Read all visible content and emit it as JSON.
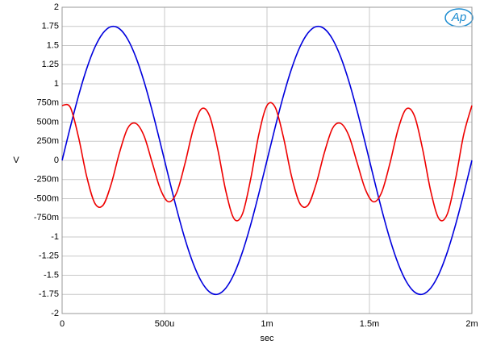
{
  "chart_data": {
    "type": "line",
    "x_label": "sec",
    "y_label": "V",
    "watermark": "Ap",
    "x": [
      0,
      4e-05,
      8e-05,
      0.00012,
      0.00016,
      0.0002,
      0.00024,
      0.00028,
      0.00032,
      0.00036,
      0.0004,
      0.00044,
      0.00048,
      0.00052,
      0.00056,
      0.0006,
      0.00064,
      0.00068,
      0.00072,
      0.00076,
      0.0008,
      0.00084,
      0.00088,
      0.00092,
      0.00096,
      0.001,
      0.00104,
      0.00108,
      0.00112,
      0.00116,
      0.0012,
      0.00124,
      0.00128,
      0.00132,
      0.00136,
      0.0014,
      0.00144,
      0.00148,
      0.00152,
      0.00156,
      0.0016,
      0.00164,
      0.00168,
      0.00172,
      0.00176,
      0.0018,
      0.00184,
      0.00188,
      0.00192,
      0.00196,
      0.002
    ],
    "series": [
      {
        "color": "#0000dd",
        "values": [
          0,
          0.435,
          0.843,
          1.198,
          1.478,
          1.664,
          1.747,
          1.719,
          1.583,
          1.348,
          1.029,
          0.644,
          0.219,
          -0.219,
          -0.644,
          -1.029,
          -1.348,
          -1.583,
          -1.719,
          -1.747,
          -1.664,
          -1.478,
          -1.198,
          -0.843,
          -0.435,
          0,
          0.435,
          0.843,
          1.198,
          1.478,
          1.664,
          1.747,
          1.719,
          1.583,
          1.348,
          1.029,
          0.644,
          0.219,
          -0.219,
          -0.644,
          -1.029,
          -1.348,
          -1.583,
          -1.719,
          -1.747,
          -1.664,
          -1.478,
          -1.198,
          -0.843,
          -0.435,
          0
        ]
      },
      {
        "color": "#ee0000",
        "values": [
          0.717,
          0.693,
          0.304,
          -0.21,
          -0.561,
          -0.585,
          -0.305,
          0.101,
          0.42,
          0.482,
          0.319,
          -0.032,
          -0.378,
          -0.541,
          -0.415,
          -0.038,
          0.408,
          0.673,
          0.578,
          0.14,
          -0.413,
          -0.765,
          -0.7,
          -0.247,
          0.337,
          0.717,
          0.693,
          0.304,
          -0.21,
          -0.561,
          -0.585,
          -0.305,
          0.101,
          0.42,
          0.482,
          0.319,
          -0.032,
          -0.378,
          -0.541,
          -0.415,
          -0.038,
          0.408,
          0.673,
          0.578,
          0.14,
          -0.413,
          -0.765,
          -0.7,
          -0.247,
          0.337,
          0.717
        ]
      }
    ],
    "xlim": [
      0,
      0.002
    ],
    "xticks": [
      0,
      {
        "value": 0.0005,
        "label": "500u"
      },
      {
        "value": 0.001,
        "label": "1m"
      },
      {
        "value": 0.0015,
        "label": "1.5m"
      },
      {
        "value": 0.002,
        "label": "2m"
      }
    ],
    "ylim": [
      -2,
      2
    ],
    "yticks": [
      2,
      1.75,
      1.5,
      1.25,
      1,
      {
        "value": 0.75,
        "label": "750m"
      },
      {
        "value": 0.5,
        "label": "500m"
      },
      {
        "value": 0.25,
        "label": "250m"
      },
      0,
      {
        "value": -0.25,
        "label": "-250m"
      },
      {
        "value": -0.5,
        "label": "-500m"
      },
      {
        "value": -0.75,
        "label": "-750m"
      },
      -1,
      -1.25,
      -1.5,
      -1.75,
      -2
    ],
    "grid": true
  }
}
